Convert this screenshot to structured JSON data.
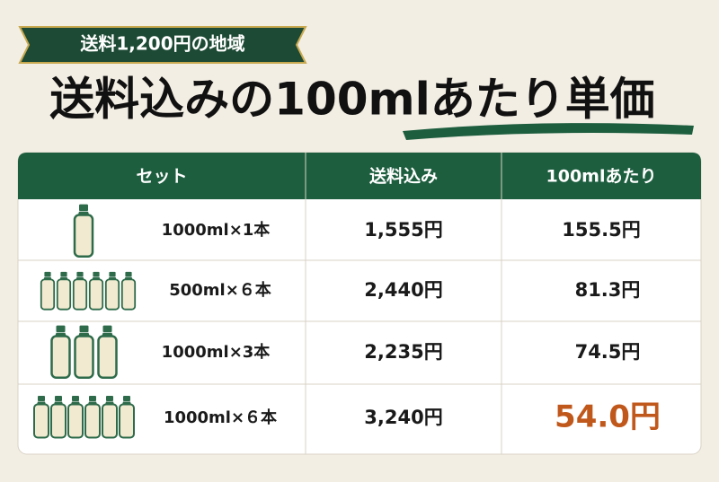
{
  "header": {
    "badge": "送料1,200円の地域",
    "title": "送料込みの100mlあたり単価"
  },
  "table": {
    "columns": [
      "セット",
      "送料込み",
      "100mlあたり"
    ],
    "rows": [
      [
        "1000ml×1本",
        "1,555円",
        "155.5円"
      ],
      [
        "500ml×６本",
        "2,440円",
        "81.3円"
      ],
      [
        "1000ml×3本",
        "2,235円",
        "74.5円"
      ],
      [
        "1000ml×６本",
        "3,240円",
        "54.0円"
      ]
    ]
  }
}
